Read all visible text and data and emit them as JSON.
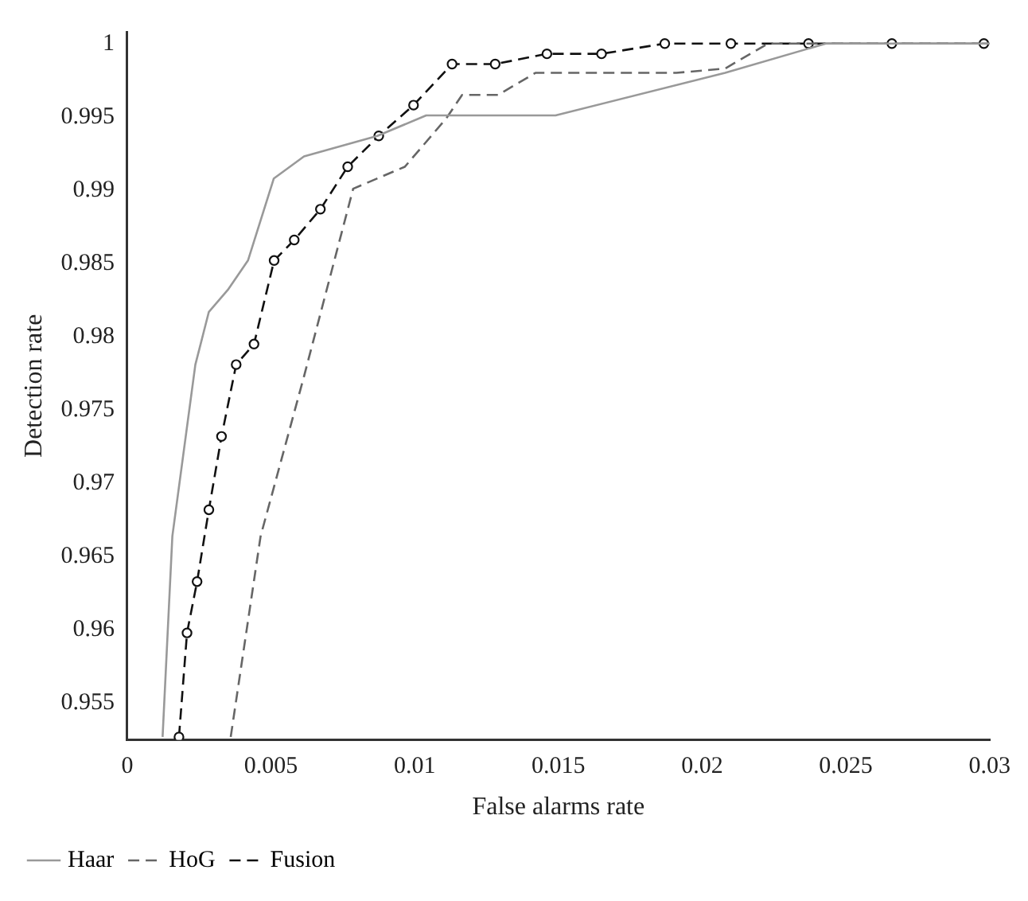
{
  "chart_data": {
    "type": "line",
    "xlabel": "False alarms rate",
    "ylabel": "Detection rate",
    "xlim": [
      0,
      0.03
    ],
    "xticks": [
      0,
      0.005,
      0.01,
      0.015,
      0.02,
      0.025,
      0.03
    ],
    "ylim": [
      0.9525,
      1.0008
    ],
    "yticks": [
      0.955,
      0.96,
      0.965,
      0.97,
      0.975,
      0.98,
      0.985,
      0.99,
      0.995,
      1
    ],
    "grid": false,
    "legend": "bottom left",
    "series": [
      {
        "name": "Haar",
        "color": "#999999",
        "line_style": "solid",
        "marker": "none",
        "x": [
          0.00123,
          0.00157,
          0.00237,
          0.00284,
          0.0035,
          0.0042,
          0.0051,
          0.00615,
          0.0087,
          0.0104,
          0.0149,
          0.0208,
          0.0243,
          0.03
        ],
        "values": [
          0.9527,
          0.9664,
          0.9781,
          0.9817,
          0.9832,
          0.9852,
          0.9908,
          0.9923,
          0.9937,
          0.9951,
          0.9951,
          0.998,
          1,
          1
        ]
      },
      {
        "name": "HoG",
        "color": "#666666",
        "line_style": "dashed",
        "marker": "none",
        "x": [
          0.0036,
          0.00464,
          0.00615,
          0.00786,
          0.00966,
          0.0111,
          0.01165,
          0.0129,
          0.0142,
          0.0191,
          0.0208,
          0.0223,
          0.03
        ],
        "values": [
          0.9527,
          0.9664,
          0.9773,
          0.9901,
          0.9916,
          0.9949,
          0.9965,
          0.9965,
          0.998,
          0.998,
          0.9983,
          1,
          1
        ]
      },
      {
        "name": "Fusion",
        "color": "#111111",
        "line_style": "dashed",
        "marker": "circle",
        "x": [
          0.0018,
          0.00208,
          0.00243,
          0.00284,
          0.00328,
          0.00379,
          0.00441,
          0.00511,
          0.00581,
          0.00672,
          0.00767,
          0.00875,
          0.00996,
          0.0113,
          0.0128,
          0.0146,
          0.0165,
          0.0187,
          0.021,
          0.0237,
          0.0266,
          0.0298
        ],
        "values": [
          0.9527,
          0.9598,
          0.9633,
          0.9682,
          0.9732,
          0.9781,
          0.9795,
          0.9852,
          0.9866,
          0.9887,
          0.9916,
          0.9937,
          0.9958,
          0.9986,
          0.9986,
          0.9993,
          0.9993,
          1,
          1,
          1,
          1,
          1
        ]
      }
    ]
  }
}
